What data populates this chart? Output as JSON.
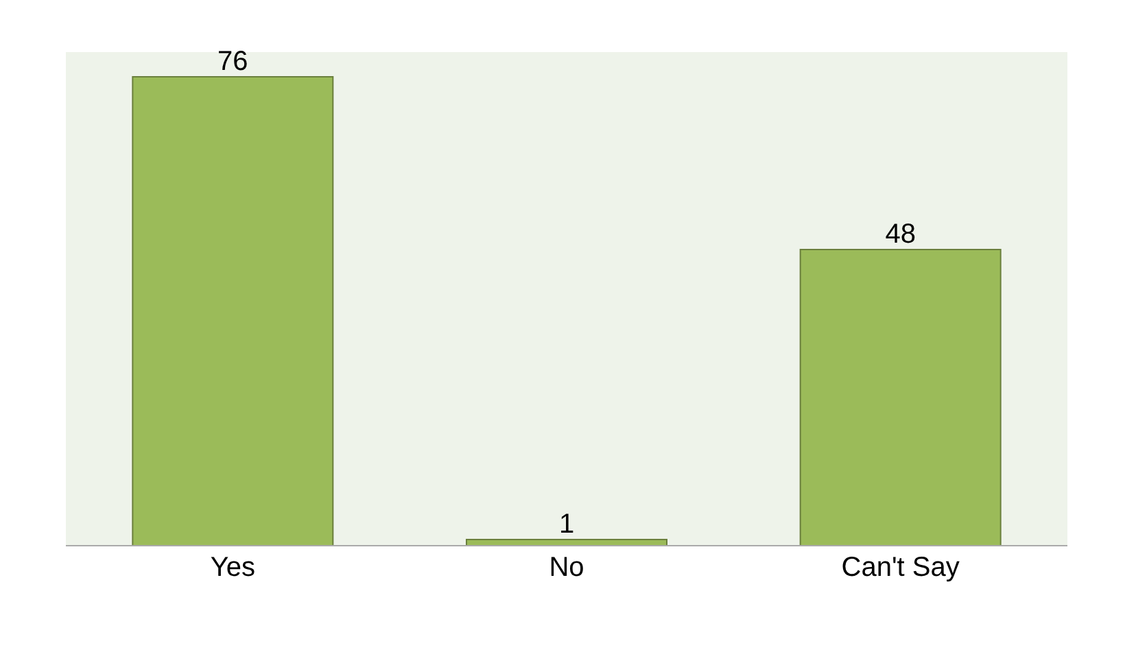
{
  "chart_data": {
    "type": "bar",
    "categories": [
      "Yes",
      "No",
      "Can't Say"
    ],
    "values": [
      76,
      1,
      48
    ],
    "color": "#9bbb59",
    "data_labels": true
  }
}
